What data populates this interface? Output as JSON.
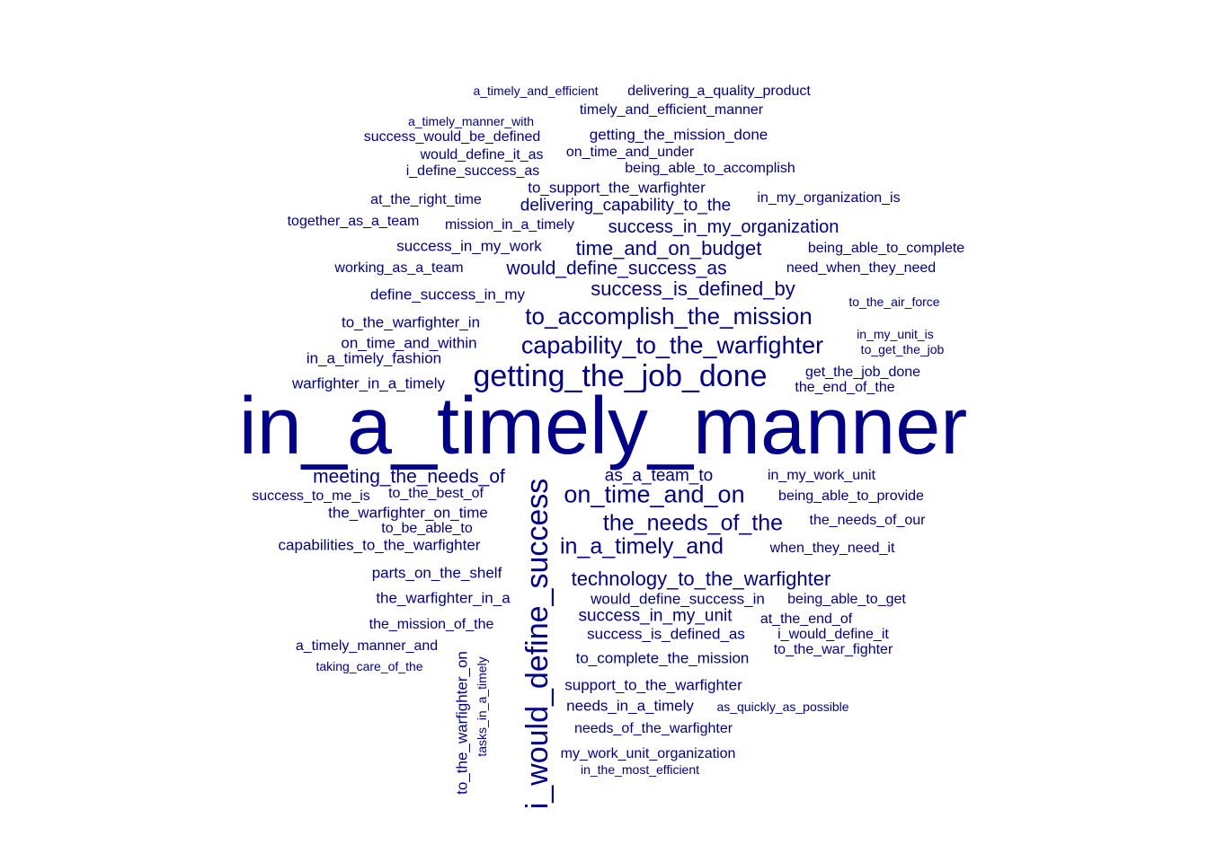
{
  "word_cloud": {
    "color": "#00008b",
    "words": [
      {
        "text": "in_a_timely_manner",
        "weight": 10
      },
      {
        "text": "i_would_define_success",
        "weight": 4.2,
        "rotated": true
      },
      {
        "text": "getting_the_job_done",
        "weight": 4
      },
      {
        "text": "capability_to_the_warfighter",
        "weight": 3.2
      },
      {
        "text": "to_accomplish_the_mission",
        "weight": 3
      },
      {
        "text": "on_time_and_on",
        "weight": 3.1
      },
      {
        "text": "the_needs_of_the",
        "weight": 2.9
      },
      {
        "text": "in_a_timely_and",
        "weight": 2.9
      },
      {
        "text": "technology_to_the_warfighter",
        "weight": 2.6
      },
      {
        "text": "success_is_defined_by",
        "weight": 2.6
      },
      {
        "text": "time_and_on_budget",
        "weight": 2.6
      },
      {
        "text": "success_in_my_organization",
        "weight": 2.4
      },
      {
        "text": "would_define_success_as",
        "weight": 2.5
      },
      {
        "text": "meeting_the_needs_of",
        "weight": 2.5
      },
      {
        "text": "success_in_my_unit",
        "weight": 2.3
      },
      {
        "text": "as_a_team_to",
        "weight": 2.3
      },
      {
        "text": "delivering_capability_to_the",
        "weight": 2.2
      },
      {
        "text": "to_support_the_warfighter",
        "weight": 2
      },
      {
        "text": "getting_the_mission_done",
        "weight": 2
      },
      {
        "text": "to_complete_the_mission",
        "weight": 2
      },
      {
        "text": "support_to_the_warfighter",
        "weight": 2
      },
      {
        "text": "success_is_defined_as",
        "weight": 2
      },
      {
        "text": "would_define_success_in",
        "weight": 2
      },
      {
        "text": "define_success_in_my",
        "weight": 2
      },
      {
        "text": "on_time_and_within",
        "weight": 2
      },
      {
        "text": "to_the_warfighter_in",
        "weight": 2
      },
      {
        "text": "success_in_my_work",
        "weight": 2
      },
      {
        "text": "the_warfighter_on_time",
        "weight": 2
      },
      {
        "text": "capabilities_to_the_warfighter",
        "weight": 2
      },
      {
        "text": "parts_on_the_shelf",
        "weight": 2
      },
      {
        "text": "the_warfighter_in_a",
        "weight": 2
      },
      {
        "text": "needs_in_a_timely",
        "weight": 2
      },
      {
        "text": "warfighter_in_a_timely",
        "weight": 2
      },
      {
        "text": "in_a_timely_fashion",
        "weight": 2
      },
      {
        "text": "to_the_warfighter_on",
        "weight": 2,
        "rotated": true
      },
      {
        "text": "on_time_and_under",
        "weight": 1.8
      },
      {
        "text": "being_able_to_accomplish",
        "weight": 1.8
      },
      {
        "text": "timely_and_efficient_manner",
        "weight": 1.8
      },
      {
        "text": "delivering_a_quality_product",
        "weight": 1.8
      },
      {
        "text": "success_would_be_defined",
        "weight": 1.8
      },
      {
        "text": "would_define_it_as",
        "weight": 1.8
      },
      {
        "text": "i_define_success_as",
        "weight": 1.8
      },
      {
        "text": "at_the_right_time",
        "weight": 1.8
      },
      {
        "text": "mission_in_a_timely",
        "weight": 1.8
      },
      {
        "text": "together_as_a_team",
        "weight": 1.8
      },
      {
        "text": "working_as_a_team",
        "weight": 1.8
      },
      {
        "text": "in_my_organization_is",
        "weight": 1.8
      },
      {
        "text": "being_able_to_complete",
        "weight": 1.8
      },
      {
        "text": "need_when_they_need",
        "weight": 1.8
      },
      {
        "text": "get_the_job_done",
        "weight": 1.8
      },
      {
        "text": "the_end_of_the",
        "weight": 1.8
      },
      {
        "text": "in_my_work_unit",
        "weight": 1.8
      },
      {
        "text": "being_able_to_provide",
        "weight": 1.8
      },
      {
        "text": "the_needs_of_our",
        "weight": 1.8
      },
      {
        "text": "when_they_need_it",
        "weight": 1.8
      },
      {
        "text": "being_able_to_get",
        "weight": 1.8
      },
      {
        "text": "at_the_end_of",
        "weight": 1.8
      },
      {
        "text": "i_would_define_it",
        "weight": 1.8
      },
      {
        "text": "to_the_war_fighter",
        "weight": 1.8
      },
      {
        "text": "success_to_me_is",
        "weight": 1.8
      },
      {
        "text": "to_the_best_of",
        "weight": 1.8
      },
      {
        "text": "to_be_able_to",
        "weight": 1.8
      },
      {
        "text": "the_mission_of_the",
        "weight": 1.8
      },
      {
        "text": "a_timely_manner_and",
        "weight": 1.8
      },
      {
        "text": "needs_of_the_warfighter",
        "weight": 1.8
      },
      {
        "text": "my_work_unit_organization",
        "weight": 1.8
      },
      {
        "text": "a_timely_and_efficient",
        "weight": 1.6
      },
      {
        "text": "a_timely_manner_with",
        "weight": 1.6
      },
      {
        "text": "to_the_air_force",
        "weight": 1.6
      },
      {
        "text": "in_my_unit_is",
        "weight": 1.6
      },
      {
        "text": "to_get_the_job",
        "weight": 1.6
      },
      {
        "text": "as_quickly_as_possible",
        "weight": 1.6
      },
      {
        "text": "taking_care_of_the",
        "weight": 1.6
      },
      {
        "text": "in_the_most_efficient",
        "weight": 1.6
      },
      {
        "text": "tasks_in_a_timely",
        "weight": 1.6,
        "rotated": true
      }
    ]
  }
}
